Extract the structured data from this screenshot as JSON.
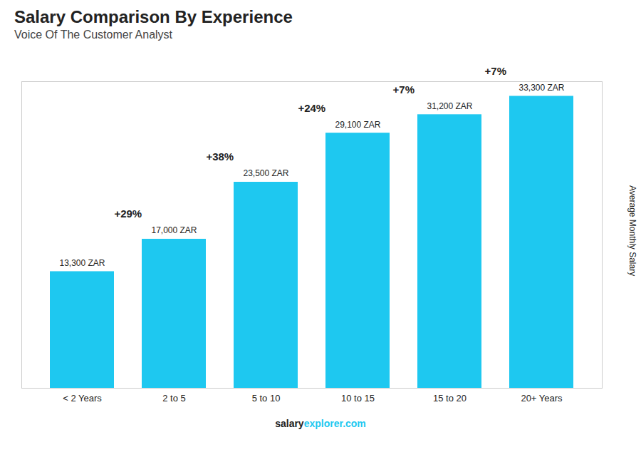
{
  "chart_data": {
    "type": "bar",
    "title": "Salary Comparison By Experience",
    "subtitle": "Voice Of The Customer Analyst",
    "ylabel": "Average Monthly Salary",
    "categories": [
      "< 2 Years",
      "2 to 5",
      "5 to 10",
      "10 to 15",
      "15 to 20",
      "20+ Years"
    ],
    "values": [
      13300,
      17000,
      23500,
      29100,
      31200,
      33300
    ],
    "value_labels": [
      "13,300 ZAR",
      "17,000 ZAR",
      "23,500 ZAR",
      "29,100 ZAR",
      "31,200 ZAR",
      "33,300 ZAR"
    ],
    "data_labels": true,
    "color": "#1ec8f0",
    "ylim": [
      0,
      34965
    ],
    "grid": false,
    "tick_labels": "x",
    "annotations": [
      {
        "from": "< 2 Years",
        "to": "2 to 5",
        "text": "+29%"
      },
      {
        "from": "2 to 5",
        "to": "5 to 10",
        "text": "+38%"
      },
      {
        "from": "5 to 10",
        "to": "10 to 15",
        "text": "+24%"
      },
      {
        "from": "10 to 15",
        "to": "15 to 20",
        "text": "+7%"
      },
      {
        "from": "15 to 20",
        "to": "20+ Years",
        "text": "+7%"
      }
    ],
    "caption": [
      "salary",
      "explorer.com"
    ]
  }
}
